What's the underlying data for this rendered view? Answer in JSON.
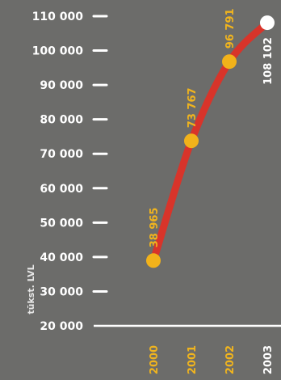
{
  "chart_data": {
    "type": "line",
    "categories": [
      "2000",
      "2001",
      "2002",
      "2003"
    ],
    "values": [
      38965,
      73767,
      96791,
      108102
    ],
    "data_labels": [
      "38 965",
      "73 767",
      "96 791",
      "108 102"
    ],
    "ylabel": "tūkst. LVL",
    "ylim": [
      20000,
      110000
    ],
    "yticks": [
      20000,
      30000,
      40000,
      50000,
      60000,
      70000,
      80000,
      90000,
      100000,
      110000
    ],
    "ytick_labels": [
      "20 000",
      "30 000",
      "40 000",
      "50 000",
      "60 000",
      "70 000",
      "80 000",
      "90 000",
      "100 000",
      "110 000"
    ],
    "grid": false,
    "colors": {
      "background": "#6c6c6a",
      "line": "#d8342a",
      "point": "#f2b21a",
      "last_point": "#ffffff",
      "label": "#f0b41e",
      "last_label": "#ffffff",
      "axis": "#ffffff"
    }
  }
}
